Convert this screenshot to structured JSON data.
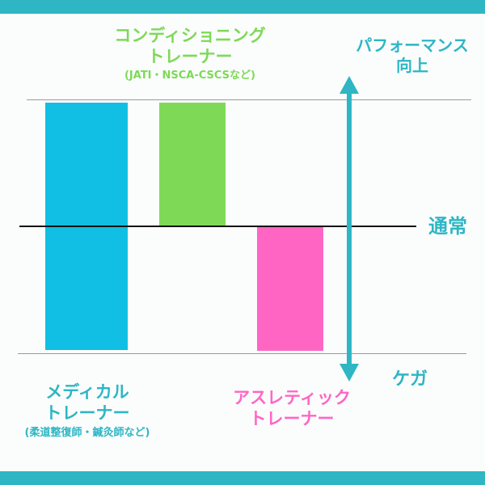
{
  "diagram": {
    "labels": {
      "conditioning": {
        "line1": "コンディショニング",
        "line2": "トレーナー",
        "sub": "(JATI・NSCA-CSCSなど)"
      },
      "medical": {
        "line1": "メディカル",
        "line2": "トレーナー",
        "sub": "(柔道整復師・鍼灸師など)"
      },
      "athletic": {
        "line1": "アスレティック",
        "line2": "トレーナー"
      },
      "performance": {
        "line1": "パフォーマンス",
        "line2": "向上"
      },
      "normal": "通常",
      "injury": "ケガ"
    },
    "colors": {
      "accent": "#2eb6c4",
      "medical": "#10bfe3",
      "conditioning": "#7ed957",
      "athletic": "#ff66c4",
      "baseline": "#111111",
      "guides": "#9a9a9a"
    }
  }
}
